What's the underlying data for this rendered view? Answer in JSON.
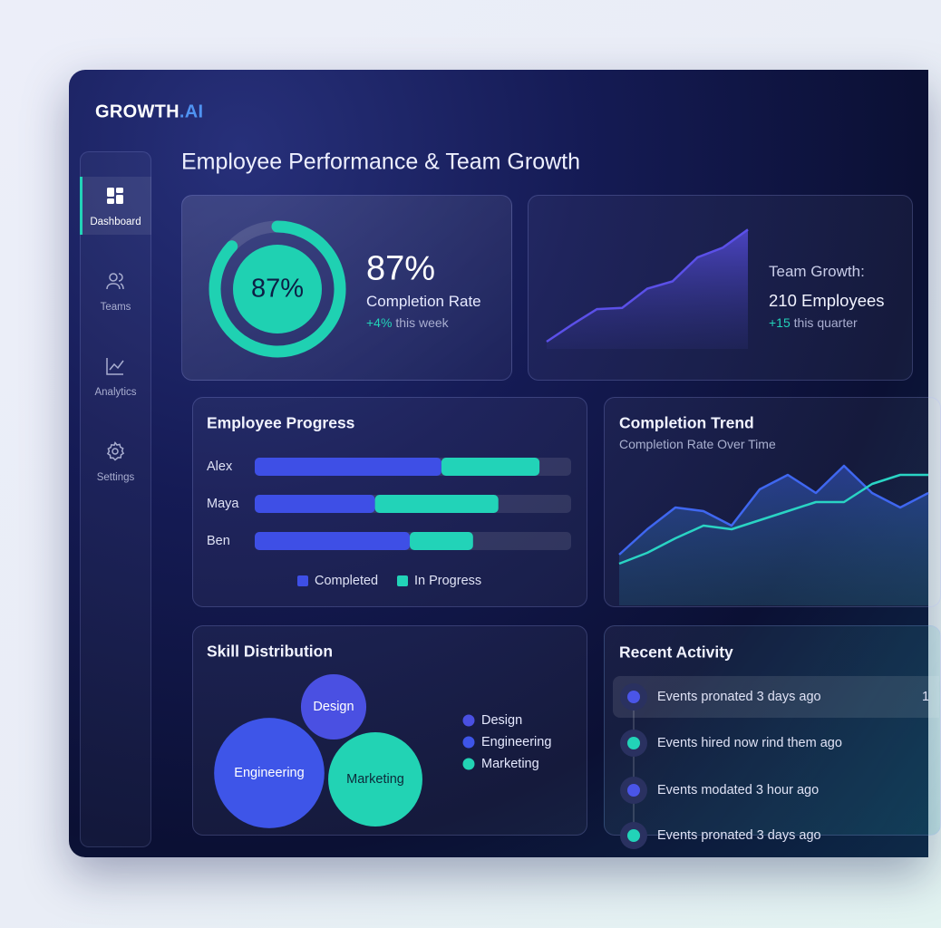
{
  "brand": {
    "name": "GROWTH",
    "suffix": ".AI"
  },
  "nav": {
    "items": [
      "Dashboard",
      "Teams",
      "Analytics",
      "Settings"
    ],
    "active": 0
  },
  "page_title": "Employee Performance & Team Growth",
  "chart_data": [
    {
      "type": "donut",
      "values": [
        87
      ],
      "value_labels": [
        "87%"
      ],
      "ylim": [
        0,
        100
      ],
      "color": "#1fd1b2",
      "label": "Completion Rate",
      "delta": "+4%",
      "delta_note": "this week"
    },
    {
      "type": "area",
      "values": [
        6,
        20,
        33,
        34,
        50,
        56,
        76,
        84,
        99
      ],
      "ylim": [
        0,
        100
      ],
      "color": "#5b50e8",
      "label": "Team Growth:",
      "headline": "210 Employees",
      "delta": "+15",
      "delta_note": "this quarter"
    },
    {
      "type": "bar",
      "orientation": "horizontal",
      "stacked": true,
      "title": "Employee Progress",
      "categories": [
        "Alex",
        "Maya",
        "Ben"
      ],
      "series": [
        {
          "name": "Completed",
          "color": "#3e4fe6",
          "values": [
            59,
            38,
            49
          ]
        },
        {
          "name": "In Progress",
          "color": "#22d3b8",
          "values": [
            31,
            39,
            20
          ]
        }
      ],
      "xlim": [
        0,
        100
      ]
    },
    {
      "type": "line",
      "title": "Completion Trend",
      "subtitle": "Completion Rate Over Time",
      "ylim": [
        0,
        100
      ],
      "series": [
        {
          "color": "#3f67f0",
          "fill": true,
          "values": [
            28,
            42,
            54,
            52,
            44,
            64,
            72,
            62,
            77,
            62,
            54,
            62
          ]
        },
        {
          "color": "#2ad4c4",
          "fill": false,
          "values": [
            23,
            29,
            37,
            44,
            42,
            47,
            52,
            57,
            57,
            67,
            72,
            72
          ]
        }
      ]
    },
    {
      "type": "bubble",
      "title": "Skill Distribution",
      "categories": [
        "Design",
        "Engineering",
        "Marketing"
      ],
      "values": [
        13,
        37,
        27
      ],
      "colors": [
        "#4a50e2",
        "#3e55e8",
        "#22d3b4"
      ]
    }
  ],
  "activity": {
    "title": "Recent Activity",
    "items": [
      {
        "text": "Events pronated 3 days ago",
        "dot": "#4a55e8",
        "trailing": "1"
      },
      {
        "text": "Events hired now rind them ago",
        "dot": "#22d3b8"
      },
      {
        "text": "Events modated 3 hour ago",
        "dot": "#4a55e8"
      },
      {
        "text": "Events pronated 3 days ago",
        "dot": "#22d3b8"
      }
    ]
  }
}
